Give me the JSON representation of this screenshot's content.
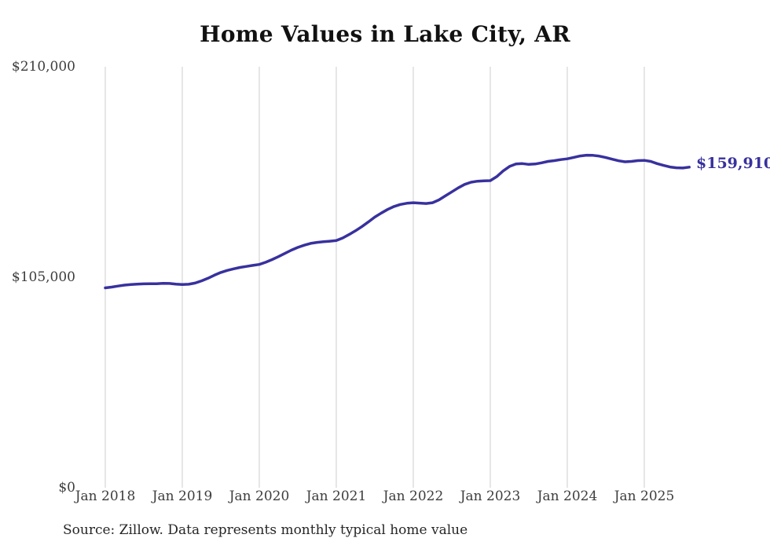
{
  "title": "Home Values in Lake City, AR",
  "source_note": "Source: Zillow. Data represents monthly typical home value",
  "colors": {
    "background": "#ffffff",
    "grid": "#cccccc",
    "line": "#38319e",
    "title_text": "#111111",
    "tick_text": "#3d3d3d",
    "source_text": "#262626"
  },
  "chart_data": {
    "type": "line",
    "title": "Home Values in Lake City, AR",
    "xlabel": "",
    "ylabel": "",
    "ylim": [
      0,
      210000
    ],
    "y_tick_values": [
      0,
      105000,
      210000
    ],
    "y_tick_labels": [
      "$0",
      "$105,000",
      "$210,000"
    ],
    "x_tick_labels": [
      "Jan 2018",
      "Jan 2019",
      "Jan 2020",
      "Jan 2021",
      "Jan 2022",
      "Jan 2023",
      "Jan 2024",
      "Jan 2025"
    ],
    "x_start": "Jan 2018",
    "x_end": "Aug 2025",
    "x_frequency": "monthly",
    "grid": "vertical-only",
    "legend": "none",
    "end_label": "$159,910",
    "end_value": 159910,
    "series": [
      {
        "name": "Typical home value",
        "color": "#38319e",
        "values": [
          99700,
          100100,
          100600,
          101100,
          101400,
          101600,
          101700,
          101800,
          101800,
          102000,
          101900,
          101600,
          101400,
          101500,
          102100,
          103200,
          104500,
          106000,
          107400,
          108400,
          109200,
          109900,
          110400,
          110900,
          111400,
          112500,
          113800,
          115300,
          116900,
          118500,
          119900,
          121000,
          121900,
          122400,
          122700,
          123000,
          123300,
          124600,
          126300,
          128200,
          130300,
          132600,
          135000,
          137000,
          138800,
          140300,
          141300,
          141900,
          142200,
          142000,
          141800,
          142200,
          143600,
          145600,
          147600,
          149600,
          151300,
          152400,
          152900,
          153100,
          153200,
          155200,
          158000,
          160300,
          161500,
          161700,
          161300,
          161500,
          162100,
          162800,
          163200,
          163700,
          164100,
          164800,
          165500,
          165900,
          165800,
          165400,
          164700,
          163900,
          163100,
          162600,
          162800,
          163200,
          163300,
          162800,
          161700,
          160800,
          160000,
          159600,
          159500,
          159910
        ]
      }
    ]
  }
}
